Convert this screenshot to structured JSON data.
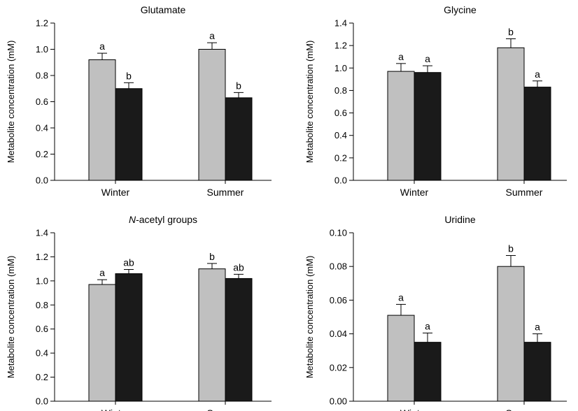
{
  "chart_data": [
    {
      "type": "bar",
      "title": "Glutamate",
      "title_italic_prefix": "",
      "ylabel": "Metabolite concentration (mM)",
      "xlabel": "",
      "categories": [
        "Winter",
        "Summer"
      ],
      "ylim": [
        0,
        1.2
      ],
      "yticks": [
        "0.0",
        "0.2",
        "0.4",
        "0.6",
        "0.8",
        "1.0",
        "1.2"
      ],
      "series": [
        {
          "color": "#c0c0c0",
          "values": [
            0.92,
            1.0
          ],
          "errors": [
            0.05,
            0.05
          ],
          "labels": [
            "a",
            "a"
          ]
        },
        {
          "color": "#1a1a1a",
          "values": [
            0.7,
            0.63
          ],
          "errors": [
            0.045,
            0.04
          ],
          "labels": [
            "b",
            "b"
          ]
        }
      ]
    },
    {
      "type": "bar",
      "title": "Glycine",
      "title_italic_prefix": "",
      "ylabel": "Metabolite concentration (mM)",
      "xlabel": "",
      "categories": [
        "Winter",
        "Summer"
      ],
      "ylim": [
        0,
        1.4
      ],
      "yticks": [
        "0.0",
        "0.2",
        "0.4",
        "0.6",
        "0.8",
        "1.0",
        "1.2",
        "1.4"
      ],
      "series": [
        {
          "color": "#c0c0c0",
          "values": [
            0.97,
            1.18
          ],
          "errors": [
            0.07,
            0.08
          ],
          "labels": [
            "a",
            "b"
          ]
        },
        {
          "color": "#1a1a1a",
          "values": [
            0.96,
            0.83
          ],
          "errors": [
            0.06,
            0.055
          ],
          "labels": [
            "a",
            "a"
          ]
        }
      ]
    },
    {
      "type": "bar",
      "title": "-acetyl groups",
      "title_italic_prefix": "N",
      "ylabel": "Metabolite concentration (mM)",
      "xlabel": "",
      "categories": [
        "Winter",
        "Summer"
      ],
      "ylim": [
        0,
        1.4
      ],
      "yticks": [
        "0.0",
        "0.2",
        "0.4",
        "0.6",
        "0.8",
        "1.0",
        "1.2",
        "1.4"
      ],
      "series": [
        {
          "color": "#c0c0c0",
          "values": [
            0.97,
            1.1
          ],
          "errors": [
            0.04,
            0.045
          ],
          "labels": [
            "a",
            "b"
          ]
        },
        {
          "color": "#1a1a1a",
          "values": [
            1.06,
            1.02
          ],
          "errors": [
            0.035,
            0.035
          ],
          "labels": [
            "ab",
            "ab"
          ]
        }
      ]
    },
    {
      "type": "bar",
      "title": "Uridine",
      "title_italic_prefix": "",
      "ylabel": "Metabolite concentration (mM)",
      "xlabel": "",
      "categories": [
        "Winter",
        "Summer"
      ],
      "ylim": [
        0,
        0.1
      ],
      "yticks": [
        "0.00",
        "0.02",
        "0.04",
        "0.06",
        "0.08",
        "0.10"
      ],
      "series": [
        {
          "color": "#c0c0c0",
          "values": [
            0.051,
            0.08
          ],
          "errors": [
            0.0065,
            0.0065
          ],
          "labels": [
            "a",
            "b"
          ]
        },
        {
          "color": "#1a1a1a",
          "values": [
            0.035,
            0.035
          ],
          "errors": [
            0.0055,
            0.005
          ],
          "labels": [
            "a",
            "a"
          ]
        }
      ]
    }
  ]
}
